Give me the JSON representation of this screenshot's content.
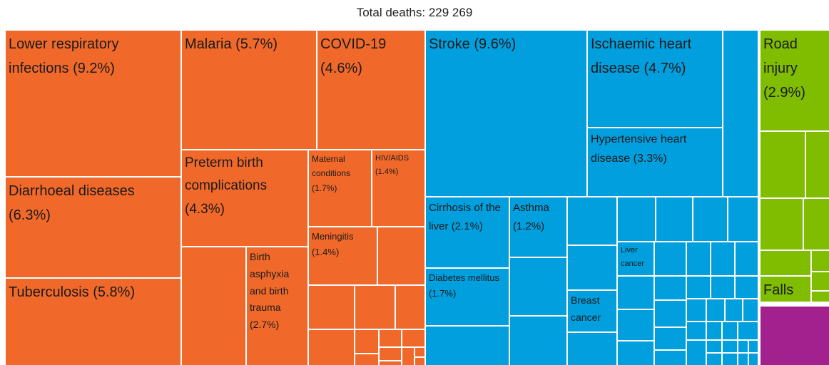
{
  "chart_data": {
    "type": "treemap",
    "title": "Total deaths: 229 269",
    "groups": [
      {
        "color": "#f1692a",
        "items": [
          {
            "name": "Lower respiratory infections",
            "value": 9.2,
            "value_label": "(9.2%)"
          },
          {
            "name": "Diarrhoeal diseases",
            "value": 6.3,
            "value_label": "(6.3%)"
          },
          {
            "name": "Tuberculosis",
            "value": 5.8,
            "value_label": "(5.8%)"
          },
          {
            "name": "Malaria",
            "value": 5.7,
            "value_label": "(5.7%)"
          },
          {
            "name": "COVID-19",
            "value": 4.6,
            "value_label": "(4.6%)"
          },
          {
            "name": "Preterm birth complications",
            "value": 4.3,
            "value_label": "(4.3%)"
          },
          {
            "name": "Maternal conditions",
            "value": 1.7,
            "value_label": "(1.7%)"
          },
          {
            "name": "HIV/AIDS",
            "value": 1.4,
            "value_label": "(1.4%)"
          },
          {
            "name": "Meningitis",
            "value": 1.4,
            "value_label": "(1.4%)"
          },
          {
            "name": "Birth asphyxia and birth trauma",
            "value": 2.7,
            "value_label": "(2.7%)"
          }
        ]
      },
      {
        "color": "#029fdf",
        "items": [
          {
            "name": "Stroke",
            "value": 9.6,
            "value_label": "(9.6%)"
          },
          {
            "name": "Ischaemic heart disease",
            "value": 4.7,
            "value_label": "(4.7%)"
          },
          {
            "name": "Hypertensive heart disease",
            "value": 3.3,
            "value_label": "(3.3%)"
          },
          {
            "name": "Cirrhosis of the liver",
            "value": 2.1,
            "value_label": "(2.1%)"
          },
          {
            "name": "Asthma",
            "value": 1.2,
            "value_label": "(1.2%)"
          },
          {
            "name": "Diabetes mellitus",
            "value": 1.7,
            "value_label": "(1.7%)"
          },
          {
            "name": "Breast cancer"
          },
          {
            "name": "Liver cancer"
          }
        ]
      },
      {
        "color": "#80bc00",
        "items": [
          {
            "name": "Road injury",
            "value": 2.9,
            "value_label": "(2.9%)"
          },
          {
            "name": "Falls"
          }
        ]
      },
      {
        "color": "#a3218e",
        "items": []
      }
    ]
  }
}
